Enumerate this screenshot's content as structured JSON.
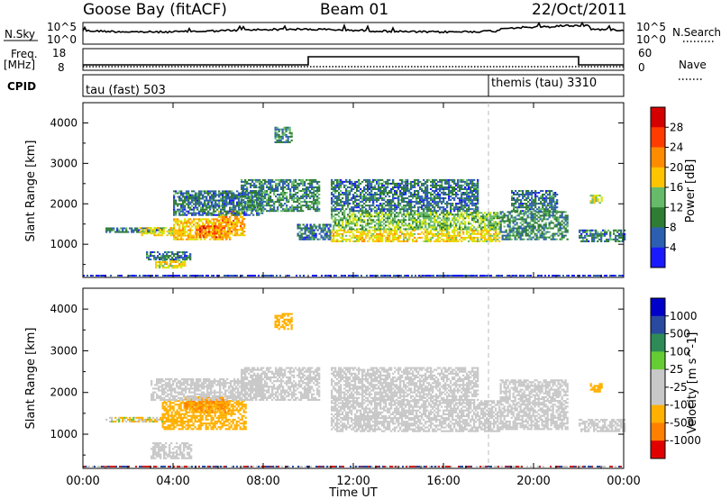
{
  "header": {
    "station": "Goose Bay (fitACF)",
    "beam": "Beam 01",
    "date": "22/Oct/2011"
  },
  "noise_panel": {
    "left_label": "N.Sky",
    "right_label": "N.Search",
    "ticks_left": [
      "10^5",
      "10^0"
    ],
    "ticks_right": [
      "10^5",
      "10^0"
    ]
  },
  "freq_panel": {
    "left_label": "Freq.",
    "left_unit": "[MHz]",
    "right_label": "Nave",
    "ticks_left": [
      "18",
      "8"
    ],
    "ticks_right": [
      "60",
      "0"
    ]
  },
  "cpid_panel": {
    "label": "CPID",
    "segments": [
      {
        "text": "tau (fast) 503",
        "start_hour": 0,
        "end_hour": 18
      },
      {
        "text": "themis (tau) 3310",
        "start_hour": 18,
        "end_hour": 24
      }
    ]
  },
  "colors": {
    "power": [
      "#1a1aff",
      "#2d5fb0",
      "#2e7d32",
      "#66bb6a",
      "#d4e600",
      "#ffc400",
      "#ff8c00",
      "#ff3c00",
      "#d40000"
    ],
    "velocity": [
      "#e00000",
      "#ff8000",
      "#ffb000",
      "#c8c8c8",
      "#c8c8c8",
      "#66cc33",
      "#2e8b57",
      "#2a4aa0",
      "#0000c8"
    ]
  },
  "chart_data": [
    {
      "type": "heatmap",
      "name": "Power",
      "ylabel": "Slant Range [km]",
      "ylim": [
        180,
        4500
      ],
      "xlim_hours": [
        0,
        24
      ],
      "yticks": [
        1000,
        2000,
        3000,
        4000
      ],
      "colorbar": {
        "label": "Power [dB]",
        "ticks": [
          4,
          8,
          12,
          16,
          20,
          24,
          28
        ],
        "range": [
          0,
          32
        ]
      },
      "regions": [
        {
          "t0": 1.0,
          "t1": 3.5,
          "r0": 1280,
          "r1": 1400,
          "level": 8
        },
        {
          "t0": 2.5,
          "t1": 4.0,
          "r0": 1200,
          "r1": 1400,
          "level": 20
        },
        {
          "t0": 4.0,
          "t1": 6.5,
          "r0": 1100,
          "r1": 1600,
          "level": 22
        },
        {
          "t0": 5.0,
          "t1": 6.2,
          "r0": 1150,
          "r1": 1450,
          "level": 28
        },
        {
          "t0": 6.0,
          "t1": 7.2,
          "r0": 1200,
          "r1": 1800,
          "level": 24
        },
        {
          "t0": 4.0,
          "t1": 8.0,
          "r0": 1700,
          "r1": 2300,
          "level": 8
        },
        {
          "t0": 7.0,
          "t1": 10.5,
          "r0": 1800,
          "r1": 2600,
          "level": 10
        },
        {
          "t0": 3.2,
          "t1": 4.5,
          "r0": 400,
          "r1": 600,
          "level": 20
        },
        {
          "t0": 2.8,
          "t1": 4.8,
          "r0": 600,
          "r1": 800,
          "level": 8
        },
        {
          "t0": 8.5,
          "t1": 9.3,
          "r0": 3500,
          "r1": 3900,
          "level": 10
        },
        {
          "t0": 9.5,
          "t1": 11.0,
          "r0": 1100,
          "r1": 1500,
          "level": 8
        },
        {
          "t0": 11.0,
          "t1": 18.5,
          "r0": 1050,
          "r1": 1350,
          "level": 20
        },
        {
          "t0": 11.0,
          "t1": 18.5,
          "r0": 1350,
          "r1": 1800,
          "level": 14
        },
        {
          "t0": 11.0,
          "t1": 17.5,
          "r0": 1800,
          "r1": 2600,
          "level": 8
        },
        {
          "t0": 18.5,
          "t1": 21.5,
          "r0": 1100,
          "r1": 1800,
          "level": 10
        },
        {
          "t0": 19.0,
          "t1": 21.0,
          "r0": 1800,
          "r1": 2300,
          "level": 8
        },
        {
          "t0": 22.0,
          "t1": 24.0,
          "r0": 1050,
          "r1": 1350,
          "level": 8
        },
        {
          "t0": 22.5,
          "t1": 23.0,
          "r0": 2000,
          "r1": 2200,
          "level": 18
        }
      ]
    },
    {
      "type": "heatmap",
      "name": "Velocity",
      "ylabel": "Slant Range [km]",
      "xlabel": "Time UT",
      "ylim": [
        180,
        4500
      ],
      "xlim_hours": [
        0,
        24
      ],
      "yticks": [
        1000,
        2000,
        3000,
        4000
      ],
      "xticks": [
        "00:00",
        "04:00",
        "08:00",
        "12:00",
        "16:00",
        "20:00",
        "00:00"
      ],
      "colorbar": {
        "label": "Velocity [m s^-1]",
        "ticks": [
          "1000",
          "500",
          "100",
          "25",
          "-25",
          "-100",
          "-500",
          "-1000"
        ]
      },
      "regions": [
        {
          "t0": 1.0,
          "t1": 3.5,
          "r0": 1280,
          "r1": 1400,
          "vel": -100
        },
        {
          "t0": 3.5,
          "t1": 7.2,
          "r0": 1100,
          "r1": 1800,
          "vel": -300
        },
        {
          "t0": 4.5,
          "t1": 6.5,
          "r0": 1500,
          "r1": 1900,
          "vel": -500
        },
        {
          "t0": 3.0,
          "t1": 8.0,
          "r0": 1800,
          "r1": 2300,
          "vel": 0
        },
        {
          "t0": 7.0,
          "t1": 10.5,
          "r0": 1800,
          "r1": 2600,
          "vel": 0
        },
        {
          "t0": 3.0,
          "t1": 4.8,
          "r0": 400,
          "r1": 800,
          "vel": 0
        },
        {
          "t0": 8.5,
          "t1": 9.3,
          "r0": 3500,
          "r1": 3900,
          "vel": -300
        },
        {
          "t0": 11.0,
          "t1": 18.5,
          "r0": 1050,
          "r1": 1800,
          "vel": 0
        },
        {
          "t0": 11.0,
          "t1": 17.5,
          "r0": 1800,
          "r1": 2600,
          "vel": 0
        },
        {
          "t0": 18.5,
          "t1": 21.5,
          "r0": 1100,
          "r1": 2300,
          "vel": 0
        },
        {
          "t0": 22.0,
          "t1": 24.0,
          "r0": 1050,
          "r1": 1350,
          "vel": 0
        },
        {
          "t0": 22.5,
          "t1": 23.0,
          "r0": 2000,
          "r1": 2200,
          "vel": -300
        }
      ]
    }
  ]
}
